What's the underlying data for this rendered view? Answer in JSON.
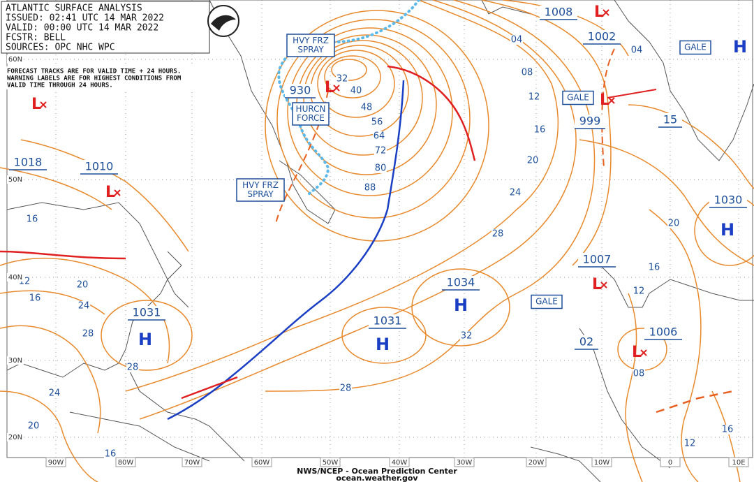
{
  "map": {
    "header": {
      "lines": [
        "ATLANTIC SURFACE ANALYSIS",
        "ISSUED:  02:41 UTC 14 MAR 2022",
        "VALID:   00:00 UTC 14 MAR 2022",
        "FCSTR:   BELL",
        "SOURCES:  OPC NHC WPC"
      ],
      "note": [
        "FORECAST TRACKS ARE FOR VALID TIME + 24 HOURS.",
        "WARNING LABELS ARE FOR HIGHEST CONDITIONS FROM",
        "VALID TIME THROUGH 24 HOURS."
      ]
    },
    "pressure_labels": [
      "1008",
      "1002",
      "1018",
      "1010",
      "930",
      "999",
      "15",
      "1030",
      "1007",
      "1034",
      "1031",
      "1031",
      "1006",
      "02"
    ],
    "warnings": [
      {
        "lines": [
          "HVY FRZ",
          "SPRAY"
        ]
      },
      {
        "lines": [
          "HURCN",
          "FORCE"
        ]
      },
      {
        "lines": [
          "HVY FRZ",
          "SPRAY"
        ]
      },
      {
        "lines": [
          "GALE"
        ]
      },
      {
        "lines": [
          "GALE"
        ]
      },
      {
        "lines": [
          "GALE"
        ]
      }
    ],
    "highs": [
      "H",
      "H",
      "H",
      "H",
      "H"
    ],
    "lows": [
      "L",
      "L",
      "L",
      "L",
      "L",
      "L",
      "L"
    ],
    "isobar_labels": [
      "04",
      "08",
      "12",
      "16",
      "20",
      "24",
      "28",
      "32",
      "28",
      "32",
      "40",
      "48",
      "56",
      "64",
      "72",
      "80",
      "88",
      "04",
      "20",
      "16",
      "12",
      "08",
      "16",
      "12",
      "16",
      "12",
      "16",
      "20",
      "24",
      "28",
      "28",
      "24",
      "20",
      "16"
    ],
    "longitudes": [
      "90W",
      "80W",
      "70W",
      "60W",
      "50W",
      "40W",
      "30W",
      "20W",
      "10W",
      "0",
      "10E"
    ],
    "latitudes": [
      "60N",
      "50N",
      "40N",
      "30N",
      "20N"
    ],
    "footer": {
      "source": "NWS/NCEP - Ocean Prediction Center",
      "url": "ocean.weather.gov"
    }
  }
}
